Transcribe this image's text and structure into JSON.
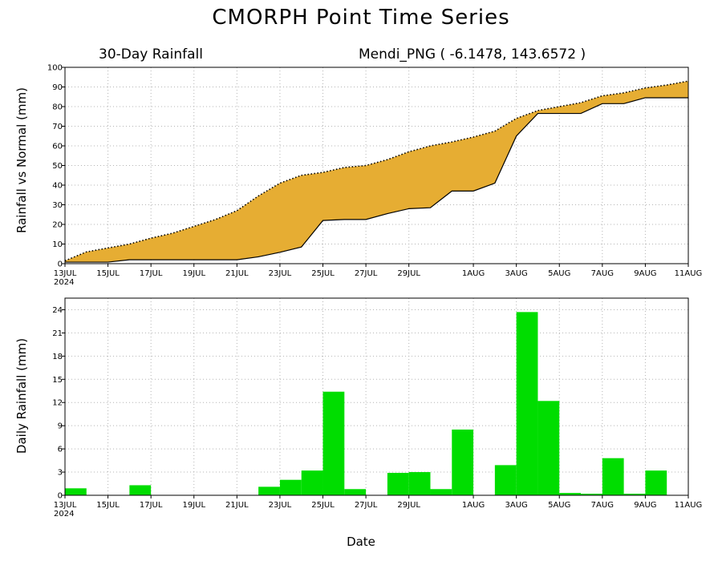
{
  "page": {
    "title": "CMORPH Point Time Series",
    "xlabel": "Date"
  },
  "chart_data": [
    {
      "type": "area",
      "subtitle_left": "30-Day Rainfall",
      "subtitle_right": "Mendi_PNG ( -6.1478, 143.6572 )",
      "ylabel": "Rainfall vs Normal (mm)",
      "ylim": [
        0,
        100
      ],
      "yticks": [
        0,
        10,
        20,
        30,
        40,
        50,
        60,
        70,
        80,
        90,
        100
      ],
      "xlim": [
        0,
        29
      ],
      "grid": true,
      "fill_color": "#e6ad33",
      "x": [
        0,
        1,
        2,
        3,
        4,
        5,
        6,
        7,
        8,
        9,
        10,
        11,
        12,
        13,
        14,
        15,
        16,
        17,
        18,
        19,
        20,
        21,
        22,
        23,
        24,
        25,
        26,
        27,
        28,
        29
      ],
      "series": [
        {
          "role": "normal",
          "style": "dotted",
          "values": [
            1.5,
            6,
            8,
            10,
            13,
            15.5,
            19,
            22.5,
            27,
            34.5,
            41,
            45,
            46.5,
            49,
            50,
            53,
            57,
            60,
            62,
            64.5,
            67.5,
            74,
            78,
            80,
            82,
            85.5,
            87,
            89.5,
            91,
            93
          ]
        },
        {
          "role": "actual",
          "style": "solid",
          "values": [
            0.8,
            0.8,
            0.8,
            2,
            2,
            2,
            2,
            2,
            2,
            3.5,
            5.8,
            8.5,
            22,
            22.5,
            22.5,
            25.5,
            28,
            28.5,
            37,
            37,
            41,
            65,
            76.5,
            76.5,
            76.5,
            81.5,
            81.5,
            84.5,
            84.5,
            84.5
          ]
        }
      ]
    },
    {
      "type": "bar",
      "ylabel": "Daily Rainfall (mm)",
      "ylim": [
        0,
        25.5
      ],
      "yticks": [
        0,
        3,
        6,
        9,
        12,
        15,
        18,
        21,
        24
      ],
      "xlim": [
        0,
        29
      ],
      "grid": true,
      "bar_color": "#00dd00",
      "x": [
        0,
        1,
        2,
        3,
        4,
        5,
        6,
        7,
        8,
        9,
        10,
        11,
        12,
        13,
        14,
        15,
        16,
        17,
        18,
        19,
        20,
        21,
        22,
        23,
        24,
        25,
        26,
        27,
        28
      ],
      "values": [
        0.9,
        0,
        0,
        1.3,
        0,
        0,
        0,
        0,
        0,
        1.1,
        2,
        3.2,
        13.4,
        0.8,
        0,
        2.9,
        3,
        0.8,
        8.5,
        0,
        3.9,
        23.7,
        12.2,
        0.3,
        0.2,
        4.8,
        0.2,
        3.2,
        0
      ]
    }
  ],
  "xticks": {
    "positions": [
      0,
      2,
      4,
      6,
      8,
      10,
      12,
      14,
      16,
      19,
      21,
      23,
      25,
      27,
      29
    ],
    "labels": [
      "13JUL",
      "15JUL",
      "17JUL",
      "19JUL",
      "21JUL",
      "23JUL",
      "25JUL",
      "27JUL",
      "29JUL",
      "1AUG",
      "3AUG",
      "5AUG",
      "7AUG",
      "9AUG",
      "11AUG"
    ],
    "year_label": "2024"
  },
  "colors": {
    "background": "#ffffff",
    "frame": "#000000",
    "grid": "#b4b4b4"
  }
}
